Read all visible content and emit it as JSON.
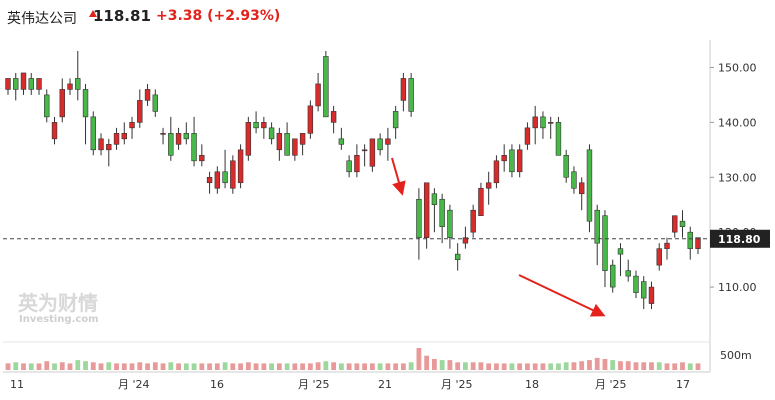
{
  "header": {
    "name": "英伟达公司",
    "price": "118.81",
    "change": "+3.38",
    "change_pct": "(+2.93%)"
  },
  "colors": {
    "up": "#e3221b",
    "down": "#3fa53f",
    "candle_up": "#d62c2c",
    "candle_down": "#48b848",
    "vol_up": "#e89a9a",
    "vol_down": "#9dd79d",
    "dash": "#444444",
    "price_tag_bg": "#222222"
  },
  "watermark": {
    "text": "英为财情",
    "sub": "Investing.com"
  },
  "chart_data": {
    "type": "candlestick",
    "ylim": [
      100,
      155
    ],
    "y_ticks": [
      110,
      120,
      130,
      140,
      150
    ],
    "y_tick_labels": [
      "110.00",
      "120.00",
      "130.00",
      "140.00",
      "150.00"
    ],
    "last_price": 118.8,
    "last_price_label": "118.80",
    "volume_tick_label": "500m",
    "x_tick_labels": [
      "11",
      "月 '24",
      "16",
      "月 '25",
      "21",
      "月 '25",
      "18",
      "月 '25",
      "17"
    ],
    "candles": [
      {
        "o": 146,
        "h": 148,
        "l": 145,
        "c": 148
      },
      {
        "o": 148,
        "h": 149,
        "l": 144,
        "c": 146
      },
      {
        "o": 146,
        "h": 149,
        "l": 145,
        "c": 149
      },
      {
        "o": 148,
        "h": 149,
        "l": 145,
        "c": 146
      },
      {
        "o": 146,
        "h": 148,
        "l": 145,
        "c": 148
      },
      {
        "o": 145,
        "h": 146,
        "l": 140,
        "c": 141
      },
      {
        "o": 137,
        "h": 141,
        "l": 136,
        "c": 140
      },
      {
        "o": 141,
        "h": 148,
        "l": 140,
        "c": 146
      },
      {
        "o": 146,
        "h": 148,
        "l": 145,
        "c": 147
      },
      {
        "o": 148,
        "h": 153,
        "l": 144,
        "c": 146
      },
      {
        "o": 146,
        "h": 147,
        "l": 136,
        "c": 141
      },
      {
        "o": 141,
        "h": 142,
        "l": 134,
        "c": 135
      },
      {
        "o": 135,
        "h": 138,
        "l": 134,
        "c": 137
      },
      {
        "o": 135,
        "h": 137,
        "l": 132,
        "c": 136
      },
      {
        "o": 136,
        "h": 139,
        "l": 135,
        "c": 138
      },
      {
        "o": 137,
        "h": 140,
        "l": 136,
        "c": 138
      },
      {
        "o": 139,
        "h": 141,
        "l": 137,
        "c": 140
      },
      {
        "o": 140,
        "h": 146,
        "l": 139,
        "c": 144
      },
      {
        "o": 144,
        "h": 147,
        "l": 143,
        "c": 146
      },
      {
        "o": 145,
        "h": 146,
        "l": 141,
        "c": 142
      },
      {
        "o": 138,
        "h": 139,
        "l": 136,
        "c": 138
      },
      {
        "o": 138,
        "h": 141,
        "l": 133,
        "c": 134
      },
      {
        "o": 136,
        "h": 139,
        "l": 135,
        "c": 138
      },
      {
        "o": 138,
        "h": 140,
        "l": 136,
        "c": 137
      },
      {
        "o": 138,
        "h": 141,
        "l": 132,
        "c": 133
      },
      {
        "o": 133,
        "h": 136,
        "l": 132,
        "c": 134
      },
      {
        "o": 129,
        "h": 131,
        "l": 127,
        "c": 130
      },
      {
        "o": 128,
        "h": 132,
        "l": 127,
        "c": 131
      },
      {
        "o": 131,
        "h": 135,
        "l": 128,
        "c": 129
      },
      {
        "o": 128,
        "h": 134,
        "l": 127,
        "c": 133
      },
      {
        "o": 129,
        "h": 136,
        "l": 128,
        "c": 135
      },
      {
        "o": 134,
        "h": 141,
        "l": 133,
        "c": 140
      },
      {
        "o": 140,
        "h": 142,
        "l": 138,
        "c": 139
      },
      {
        "o": 139,
        "h": 141,
        "l": 137,
        "c": 140
      },
      {
        "o": 139,
        "h": 140,
        "l": 136,
        "c": 137
      },
      {
        "o": 135,
        "h": 139,
        "l": 133,
        "c": 138
      },
      {
        "o": 138,
        "h": 140,
        "l": 134,
        "c": 134
      },
      {
        "o": 134,
        "h": 137,
        "l": 133,
        "c": 137
      },
      {
        "o": 136,
        "h": 138,
        "l": 134,
        "c": 138
      },
      {
        "o": 138,
        "h": 144,
        "l": 137,
        "c": 143
      },
      {
        "o": 143,
        "h": 149,
        "l": 142,
        "c": 147
      },
      {
        "o": 152,
        "h": 153,
        "l": 141,
        "c": 141
      },
      {
        "o": 140,
        "h": 143,
        "l": 138,
        "c": 142
      },
      {
        "o": 137,
        "h": 139,
        "l": 135,
        "c": 136
      },
      {
        "o": 133,
        "h": 134,
        "l": 130,
        "c": 131
      },
      {
        "o": 131,
        "h": 136,
        "l": 130,
        "c": 134
      },
      {
        "o": 135,
        "h": 136,
        "l": 132,
        "c": 135
      },
      {
        "o": 132,
        "h": 137,
        "l": 131,
        "c": 137
      },
      {
        "o": 137,
        "h": 138,
        "l": 134,
        "c": 135
      },
      {
        "o": 136,
        "h": 139,
        "l": 133,
        "c": 137
      },
      {
        "o": 142,
        "h": 143,
        "l": 137,
        "c": 139
      },
      {
        "o": 144,
        "h": 149,
        "l": 142,
        "c": 148
      },
      {
        "o": 148,
        "h": 149,
        "l": 141,
        "c": 142
      },
      {
        "o": 126,
        "h": 128,
        "l": 115,
        "c": 119
      },
      {
        "o": 119,
        "h": 129,
        "l": 117,
        "c": 129
      },
      {
        "o": 127,
        "h": 128,
        "l": 120,
        "c": 125
      },
      {
        "o": 126,
        "h": 127,
        "l": 118,
        "c": 121
      },
      {
        "o": 124,
        "h": 125,
        "l": 117,
        "c": 119
      },
      {
        "o": 116,
        "h": 118,
        "l": 113,
        "c": 115
      },
      {
        "o": 118,
        "h": 121,
        "l": 117,
        "c": 119
      },
      {
        "o": 120,
        "h": 125,
        "l": 119,
        "c": 124
      },
      {
        "o": 123,
        "h": 129,
        "l": 123,
        "c": 128
      },
      {
        "o": 128,
        "h": 131,
        "l": 125,
        "c": 129
      },
      {
        "o": 129,
        "h": 134,
        "l": 128,
        "c": 133
      },
      {
        "o": 133,
        "h": 136,
        "l": 131,
        "c": 134
      },
      {
        "o": 135,
        "h": 136,
        "l": 130,
        "c": 131
      },
      {
        "o": 131,
        "h": 136,
        "l": 130,
        "c": 135
      },
      {
        "o": 136,
        "h": 140,
        "l": 135,
        "c": 139
      },
      {
        "o": 139,
        "h": 143,
        "l": 136,
        "c": 141
      },
      {
        "o": 141,
        "h": 142,
        "l": 137,
        "c": 139
      },
      {
        "o": 140,
        "h": 141,
        "l": 137,
        "c": 140
      },
      {
        "o": 140,
        "h": 141,
        "l": 134,
        "c": 134
      },
      {
        "o": 134,
        "h": 135,
        "l": 129,
        "c": 130
      },
      {
        "o": 131,
        "h": 132,
        "l": 127,
        "c": 128
      },
      {
        "o": 127,
        "h": 130,
        "l": 124,
        "c": 129
      },
      {
        "o": 135,
        "h": 136,
        "l": 120,
        "c": 122
      },
      {
        "o": 124,
        "h": 125,
        "l": 114,
        "c": 118
      },
      {
        "o": 123,
        "h": 124,
        "l": 110,
        "c": 113
      },
      {
        "o": 114,
        "h": 115,
        "l": 109,
        "c": 110
      },
      {
        "o": 117,
        "h": 118,
        "l": 112,
        "c": 116
      },
      {
        "o": 113,
        "h": 115,
        "l": 111,
        "c": 112
      },
      {
        "o": 112,
        "h": 113,
        "l": 108,
        "c": 109
      },
      {
        "o": 111,
        "h": 112,
        "l": 106,
        "c": 108
      },
      {
        "o": 107,
        "h": 111,
        "l": 106,
        "c": 110
      },
      {
        "o": 114,
        "h": 118,
        "l": 113,
        "c": 117
      },
      {
        "o": 117,
        "h": 119,
        "l": 115,
        "c": 118
      },
      {
        "o": 120,
        "h": 123,
        "l": 119,
        "c": 123
      },
      {
        "o": 122,
        "h": 124,
        "l": 119,
        "c": 121
      },
      {
        "o": 120,
        "h": 121,
        "l": 115,
        "c": 117
      },
      {
        "o": 117,
        "h": 119,
        "l": 116,
        "c": 119
      }
    ],
    "volumes": [
      {
        "v": 0.3,
        "up": 1
      },
      {
        "v": 0.35,
        "up": 0
      },
      {
        "v": 0.3,
        "up": 1
      },
      {
        "v": 0.3,
        "up": 0
      },
      {
        "v": 0.3,
        "up": 1
      },
      {
        "v": 0.4,
        "up": 1
      },
      {
        "v": 0.3,
        "up": 0
      },
      {
        "v": 0.35,
        "up": 1
      },
      {
        "v": 0.3,
        "up": 1
      },
      {
        "v": 0.45,
        "up": 0
      },
      {
        "v": 0.4,
        "up": 0
      },
      {
        "v": 0.35,
        "up": 1
      },
      {
        "v": 0.3,
        "up": 1
      },
      {
        "v": 0.35,
        "up": 0
      },
      {
        "v": 0.3,
        "up": 1
      },
      {
        "v": 0.3,
        "up": 1
      },
      {
        "v": 0.3,
        "up": 1
      },
      {
        "v": 0.35,
        "up": 1
      },
      {
        "v": 0.3,
        "up": 1
      },
      {
        "v": 0.35,
        "up": 1
      },
      {
        "v": 0.3,
        "up": 1
      },
      {
        "v": 0.35,
        "up": 0
      },
      {
        "v": 0.3,
        "up": 1
      },
      {
        "v": 0.3,
        "up": 0
      },
      {
        "v": 0.3,
        "up": 0
      },
      {
        "v": 0.3,
        "up": 1
      },
      {
        "v": 0.3,
        "up": 1
      },
      {
        "v": 0.3,
        "up": 1
      },
      {
        "v": 0.35,
        "up": 0
      },
      {
        "v": 0.3,
        "up": 1
      },
      {
        "v": 0.3,
        "up": 1
      },
      {
        "v": 0.35,
        "up": 1
      },
      {
        "v": 0.3,
        "up": 1
      },
      {
        "v": 0.3,
        "up": 1
      },
      {
        "v": 0.3,
        "up": 0
      },
      {
        "v": 0.3,
        "up": 1
      },
      {
        "v": 0.3,
        "up": 0
      },
      {
        "v": 0.3,
        "up": 1
      },
      {
        "v": 0.3,
        "up": 1
      },
      {
        "v": 0.3,
        "up": 1
      },
      {
        "v": 0.35,
        "up": 1
      },
      {
        "v": 0.4,
        "up": 0
      },
      {
        "v": 0.35,
        "up": 1
      },
      {
        "v": 0.3,
        "up": 0
      },
      {
        "v": 0.3,
        "up": 1
      },
      {
        "v": 0.3,
        "up": 1
      },
      {
        "v": 0.3,
        "up": 1
      },
      {
        "v": 0.3,
        "up": 1
      },
      {
        "v": 0.3,
        "up": 0
      },
      {
        "v": 0.3,
        "up": 1
      },
      {
        "v": 0.3,
        "up": 1
      },
      {
        "v": 0.3,
        "up": 1
      },
      {
        "v": 0.35,
        "up": 0
      },
      {
        "v": 1.0,
        "up": 1
      },
      {
        "v": 0.65,
        "up": 1
      },
      {
        "v": 0.5,
        "up": 1
      },
      {
        "v": 0.45,
        "up": 0
      },
      {
        "v": 0.45,
        "up": 1
      },
      {
        "v": 0.35,
        "up": 1
      },
      {
        "v": 0.35,
        "up": 0
      },
      {
        "v": 0.35,
        "up": 1
      },
      {
        "v": 0.35,
        "up": 1
      },
      {
        "v": 0.3,
        "up": 1
      },
      {
        "v": 0.3,
        "up": 1
      },
      {
        "v": 0.3,
        "up": 1
      },
      {
        "v": 0.3,
        "up": 0
      },
      {
        "v": 0.3,
        "up": 1
      },
      {
        "v": 0.3,
        "up": 1
      },
      {
        "v": 0.3,
        "up": 1
      },
      {
        "v": 0.3,
        "up": 1
      },
      {
        "v": 0.3,
        "up": 0
      },
      {
        "v": 0.3,
        "up": 0
      },
      {
        "v": 0.35,
        "up": 0
      },
      {
        "v": 0.35,
        "up": 1
      },
      {
        "v": 0.4,
        "up": 1
      },
      {
        "v": 0.45,
        "up": 1
      },
      {
        "v": 0.55,
        "up": 1
      },
      {
        "v": 0.5,
        "up": 1
      },
      {
        "v": 0.45,
        "up": 0
      },
      {
        "v": 0.4,
        "up": 1
      },
      {
        "v": 0.4,
        "up": 1
      },
      {
        "v": 0.35,
        "up": 1
      },
      {
        "v": 0.35,
        "up": 1
      },
      {
        "v": 0.35,
        "up": 1
      },
      {
        "v": 0.35,
        "up": 0
      },
      {
        "v": 0.3,
        "up": 1
      },
      {
        "v": 0.3,
        "up": 1
      },
      {
        "v": 0.35,
        "up": 1
      },
      {
        "v": 0.3,
        "up": 0
      },
      {
        "v": 0.3,
        "up": 1
      }
    ]
  }
}
